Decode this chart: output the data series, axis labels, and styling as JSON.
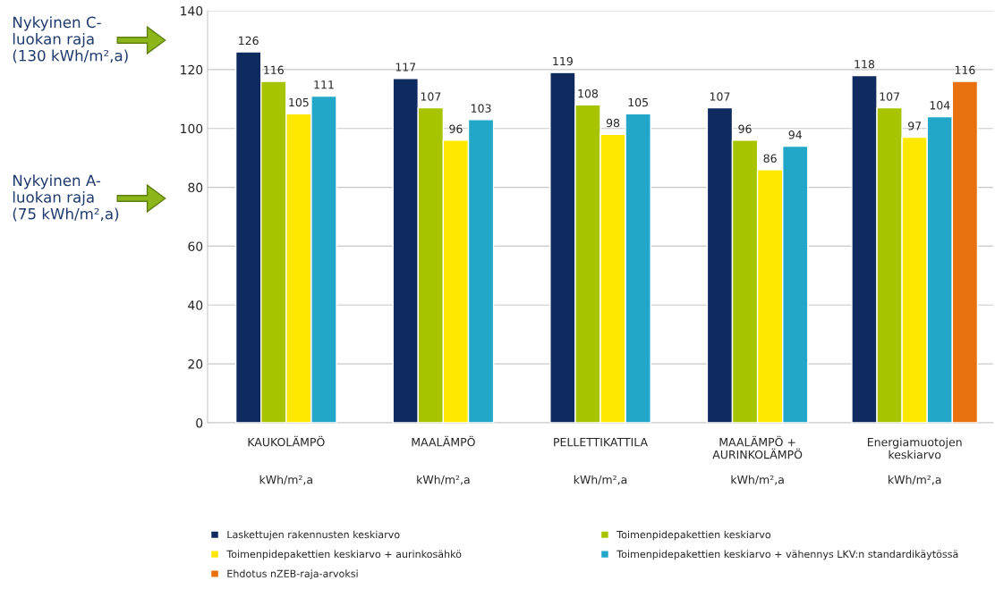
{
  "chart_data": {
    "type": "bar",
    "categories": [
      "KAUKOLÄMPÖ\n\n\nkWh/m²,a",
      "MAALÄMPÖ\n\n\nkWh/m²,a",
      "PELLETTIKATTILA\n\n\nkWh/m²,a",
      "MAALÄMPÖ +\nAURINKOLÄMPÖ\n\nkWh/m²,a",
      "Energiamuotojen\nkeskiarvo\n\nkWh/m²,a"
    ],
    "series": [
      {
        "name": "Laskettujen rakennusten keskiarvo",
        "color": "#0f2a5e",
        "values": [
          126,
          117,
          119,
          107,
          118
        ]
      },
      {
        "name": "Toimenpidepakettien keskiarvo",
        "color": "#a8c400",
        "values": [
          116,
          107,
          108,
          96,
          107
        ]
      },
      {
        "name": "Toimenpidepakettien keskiarvo + aurinkosähkö",
        "color": "#ffe800",
        "values": [
          105,
          96,
          98,
          86,
          97
        ]
      },
      {
        "name": "Toimenpidepakettien keskiarvo + vähennys LKV:n standardikäytössä",
        "color": "#22a7c8",
        "values": [
          111,
          103,
          105,
          94,
          104
        ]
      },
      {
        "name": "Ehdotus nZEB-raja-arvoksi",
        "color": "#e8700f",
        "values": [
          null,
          null,
          null,
          null,
          116
        ]
      }
    ],
    "ylim": [
      0,
      140
    ],
    "yticks": [
      0,
      20,
      40,
      60,
      80,
      100,
      120,
      140
    ],
    "annotations": [
      "Nykyinen C-\nluokan raja\n(130 kWh/m²,a)",
      "Nykyinen A-\nluokan raja\n(75 kWh/m²,a)"
    ],
    "data_labels": true,
    "grid": "y",
    "legend": "bottom"
  }
}
